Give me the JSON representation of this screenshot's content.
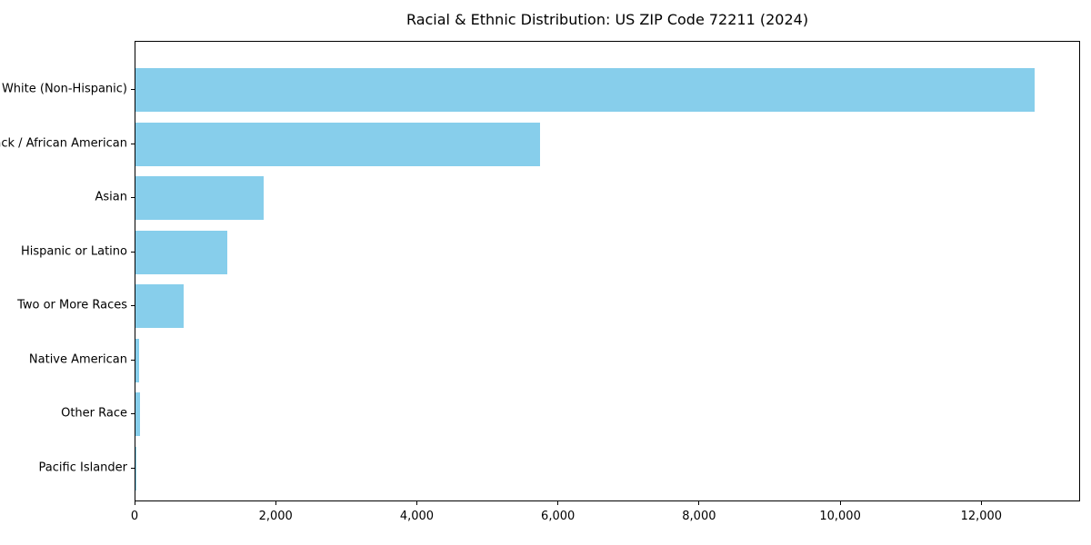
{
  "chart_data": {
    "type": "bar",
    "orientation": "horizontal",
    "title": "Racial & Ethnic Distribution: US ZIP Code 72211 (2024)",
    "categories": [
      "White (Non-Hispanic)",
      "Black / African American",
      "Asian",
      "Hispanic or Latino",
      "Two or More Races",
      "Native American",
      "Other Race",
      "Pacific Islander"
    ],
    "values": [
      12740,
      5730,
      1820,
      1300,
      680,
      50,
      60,
      12
    ],
    "xlabel": "",
    "ylabel": "",
    "xlim": [
      0,
      13400
    ],
    "xticks": [
      0,
      2000,
      4000,
      6000,
      8000,
      10000,
      12000
    ],
    "xtick_labels": [
      "0",
      "2,000",
      "4,000",
      "6,000",
      "8,000",
      "10,000",
      "12,000"
    ],
    "bar_color": "#87CEEB",
    "text_color": "#000000",
    "grid": false,
    "legend": null
  }
}
